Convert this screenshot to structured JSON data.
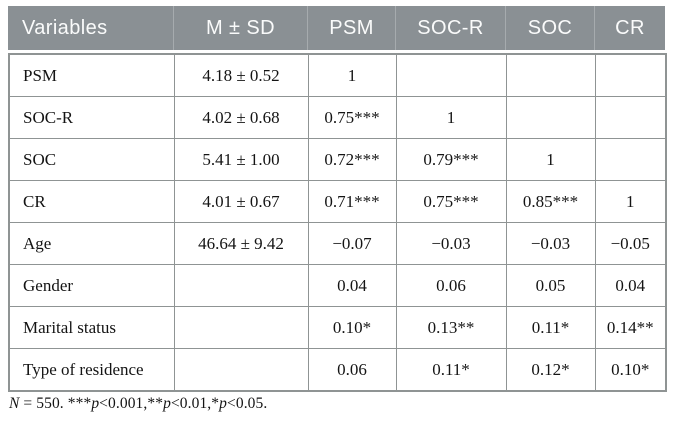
{
  "colors": {
    "header_bg": "#8a9094",
    "header_divider": "#a6abae",
    "header_text": "#fafbfb",
    "border": "#8f9494",
    "text": "#141414",
    "page_bg": "#ffffff"
  },
  "table": {
    "columns": [
      {
        "key": "variable",
        "label": "Variables"
      },
      {
        "key": "m_sd",
        "label": "M ± SD"
      },
      {
        "key": "psm",
        "label": "PSM"
      },
      {
        "key": "soc_r",
        "label": "SOC-R"
      },
      {
        "key": "soc",
        "label": "SOC"
      },
      {
        "key": "cr",
        "label": "CR"
      }
    ],
    "rows": [
      {
        "variable": "PSM",
        "m_sd": "4.18 ± 0.52",
        "psm": "1",
        "soc_r": "",
        "soc": "",
        "cr": ""
      },
      {
        "variable": "SOC-R",
        "m_sd": "4.02 ± 0.68",
        "psm": "0.75***",
        "soc_r": "1",
        "soc": "",
        "cr": ""
      },
      {
        "variable": "SOC",
        "m_sd": "5.41 ± 1.00",
        "psm": "0.72***",
        "soc_r": "0.79***",
        "soc": "1",
        "cr": ""
      },
      {
        "variable": "CR",
        "m_sd": "4.01 ± 0.67",
        "psm": "0.71***",
        "soc_r": "0.75***",
        "soc": "0.85***",
        "cr": "1"
      },
      {
        "variable": "Age",
        "m_sd": "46.64 ± 9.42",
        "psm": "−0.07",
        "soc_r": "−0.03",
        "soc": "−0.03",
        "cr": "−0.05"
      },
      {
        "variable": "Gender",
        "m_sd": "",
        "psm": "0.04",
        "soc_r": "0.06",
        "soc": "0.05",
        "cr": "0.04"
      },
      {
        "variable": "Marital status",
        "m_sd": "",
        "psm": "0.10*",
        "soc_r": "0.13**",
        "soc": "0.11*",
        "cr": "0.14**"
      },
      {
        "variable": "Type of residence",
        "m_sd": "",
        "psm": "0.06",
        "soc_r": "0.11*",
        "soc": "0.12*",
        "cr": "0.10*"
      }
    ],
    "footnote_segments": [
      {
        "text": "N",
        "italic": true
      },
      {
        "text": " = 550. ",
        "italic": false
      },
      {
        "text": "***",
        "italic": false
      },
      {
        "text": "p",
        "italic": true
      },
      {
        "text": "<0.001,",
        "italic": false
      },
      {
        "text": "**",
        "italic": false
      },
      {
        "text": "p",
        "italic": true
      },
      {
        "text": "<0.01,",
        "italic": false
      },
      {
        "text": "*",
        "italic": false
      },
      {
        "text": "p",
        "italic": true
      },
      {
        "text": "<0.05.",
        "italic": false
      }
    ]
  }
}
